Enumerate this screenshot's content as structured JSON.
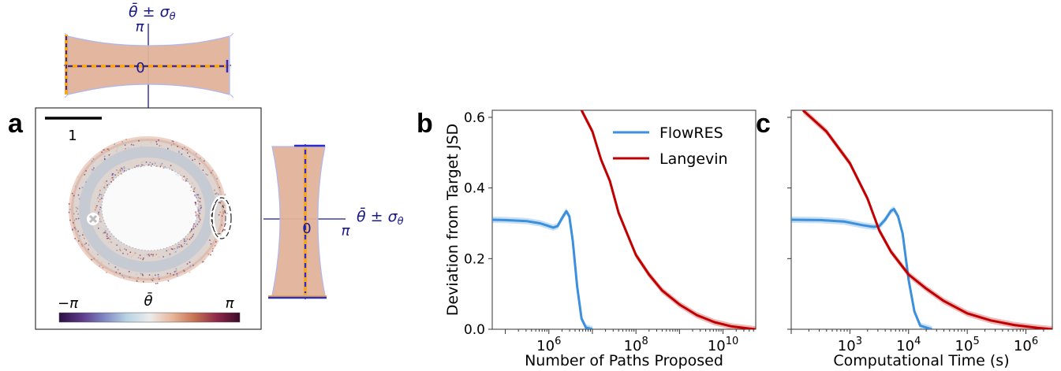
{
  "panels": {
    "a": "a",
    "b": "b",
    "c": "c"
  },
  "panel_a": {
    "scale_bar_label": "1",
    "colorbar": {
      "min_label": "−π",
      "mid_label": "θ̄",
      "max_label": "π",
      "colors": [
        "#2b1042",
        "#5c3a8a",
        "#7f86c2",
        "#b8d3e3",
        "#ececec",
        "#e7b79a",
        "#c67152",
        "#8e2749",
        "#3c0b2a"
      ]
    },
    "top_inset": {
      "title": "θ̄ ± σ",
      "title_sub": "θ",
      "tick_pi": "π",
      "tick_zero": "0"
    },
    "right_inset": {
      "title": "θ̄ ± σ",
      "title_sub": "θ",
      "tick_pi": "π",
      "tick_zero": "0"
    },
    "colors": {
      "band": "#e2b49a",
      "band_edge": "#aab4f0",
      "mean_line": "#f5a623",
      "mean_dash": "#2c2ccc",
      "axis": "#1a1a8c"
    }
  },
  "chart_data": [
    {
      "panel": "b",
      "type": "line",
      "xscale": "log",
      "xlim_exponent": [
        4.7,
        10.75
      ],
      "ylim": [
        0,
        0.62
      ],
      "xlabel": "Number of Paths Proposed",
      "ylabel": "Deviation from Target JSD",
      "yticks": [
        "0.0",
        "0.2",
        "0.4",
        "0.6"
      ],
      "xticks": [
        {
          "base": "10",
          "exp": "6"
        },
        {
          "base": "10",
          "exp": "8"
        },
        {
          "base": "10",
          "exp": "10"
        }
      ],
      "legend": "top-right",
      "series": [
        {
          "name": "FlowRES",
          "color": "#3b8fdc",
          "points": [
            [
              4.7,
              0.31
            ],
            [
              5.0,
              0.309
            ],
            [
              5.5,
              0.306
            ],
            [
              5.8,
              0.3
            ],
            [
              6.0,
              0.292
            ],
            [
              6.1,
              0.288
            ],
            [
              6.2,
              0.292
            ],
            [
              6.32,
              0.318
            ],
            [
              6.4,
              0.334
            ],
            [
              6.47,
              0.32
            ],
            [
              6.55,
              0.25
            ],
            [
              6.65,
              0.12
            ],
            [
              6.75,
              0.03
            ],
            [
              6.85,
              0.005
            ],
            [
              7.0,
              0.0
            ]
          ]
        },
        {
          "name": "Langevin",
          "color": "#c00000",
          "points": [
            [
              6.75,
              0.62
            ],
            [
              7.0,
              0.56
            ],
            [
              7.2,
              0.48
            ],
            [
              7.4,
              0.42
            ],
            [
              7.6,
              0.33
            ],
            [
              7.8,
              0.27
            ],
            [
              8.0,
              0.21
            ],
            [
              8.3,
              0.155
            ],
            [
              8.6,
              0.11
            ],
            [
              9.0,
              0.07
            ],
            [
              9.4,
              0.04
            ],
            [
              9.8,
              0.02
            ],
            [
              10.2,
              0.008
            ],
            [
              10.6,
              0.002
            ],
            [
              10.75,
              0.0
            ]
          ]
        }
      ]
    },
    {
      "panel": "c",
      "type": "line",
      "xscale": "log",
      "xlim_exponent": [
        2.0,
        6.45
      ],
      "ylim": [
        0,
        0.62
      ],
      "xlabel": "Computational Time (s)",
      "ylabel": "",
      "xticks": [
        {
          "base": "10",
          "exp": "3"
        },
        {
          "base": "10",
          "exp": "4"
        },
        {
          "base": "10",
          "exp": "5"
        },
        {
          "base": "10",
          "exp": "6"
        }
      ],
      "series": [
        {
          "color": "#3b8fdc",
          "points": [
            [
              2.0,
              0.31
            ],
            [
              2.5,
              0.309
            ],
            [
              2.9,
              0.305
            ],
            [
              3.2,
              0.295
            ],
            [
              3.4,
              0.29
            ],
            [
              3.5,
              0.292
            ],
            [
              3.6,
              0.31
            ],
            [
              3.7,
              0.335
            ],
            [
              3.75,
              0.34
            ],
            [
              3.82,
              0.32
            ],
            [
              3.9,
              0.27
            ],
            [
              4.0,
              0.14
            ],
            [
              4.1,
              0.05
            ],
            [
              4.2,
              0.01
            ],
            [
              4.4,
              0.0
            ]
          ]
        },
        {
          "color": "#c00000",
          "points": [
            [
              2.2,
              0.62
            ],
            [
              2.6,
              0.56
            ],
            [
              3.0,
              0.47
            ],
            [
              3.3,
              0.37
            ],
            [
              3.5,
              0.28
            ],
            [
              3.7,
              0.22
            ],
            [
              4.0,
              0.155
            ],
            [
              4.3,
              0.115
            ],
            [
              4.6,
              0.08
            ],
            [
              5.0,
              0.045
            ],
            [
              5.4,
              0.025
            ],
            [
              5.8,
              0.012
            ],
            [
              6.2,
              0.004
            ],
            [
              6.45,
              0.0
            ]
          ]
        }
      ]
    }
  ]
}
